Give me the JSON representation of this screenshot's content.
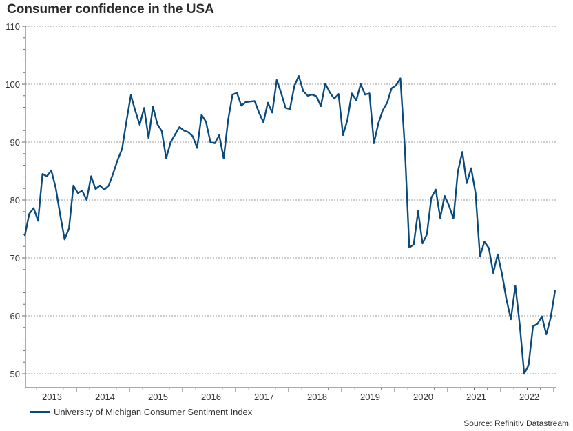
{
  "chart_data": {
    "type": "line",
    "title": "Consumer confidence in the USA",
    "xlabel": "",
    "ylabel": "",
    "ylim": [
      50,
      110
    ],
    "yticks": [
      50,
      60,
      70,
      80,
      90,
      100,
      110
    ],
    "ytick_labels": [
      "50",
      "60",
      "70",
      "80",
      "90",
      "100",
      "110"
    ],
    "grid": "horizontal dashed",
    "x_start": "2013-01",
    "x_frequency": "monthly",
    "xtick_labels": [
      "2013",
      "2014",
      "2015",
      "2016",
      "2017",
      "2018",
      "2019",
      "2020",
      "2021",
      "2022"
    ],
    "legend_position": "bottom-left",
    "series": [
      {
        "name": "University of Michigan Consumer Sentiment Index",
        "color": "#0b4a7c",
        "values": [
          73.8,
          77.6,
          78.6,
          76.4,
          84.5,
          84.1,
          85.1,
          82.1,
          77.5,
          73.2,
          75.1,
          82.5,
          81.2,
          81.6,
          80.0,
          84.1,
          81.9,
          82.5,
          81.8,
          82.5,
          84.6,
          86.9,
          88.8,
          93.6,
          98.1,
          95.4,
          93.0,
          95.9,
          90.7,
          96.1,
          93.1,
          91.9,
          87.2,
          90.0,
          91.3,
          92.6,
          92.0,
          91.7,
          91.0,
          89.0,
          94.7,
          93.5,
          90.0,
          89.8,
          91.2,
          87.2,
          93.8,
          98.2,
          98.5,
          96.3,
          96.9,
          97.0,
          97.1,
          95.1,
          93.4,
          96.8,
          95.1,
          100.7,
          98.5,
          95.9,
          95.7,
          99.7,
          101.4,
          98.8,
          98.0,
          98.2,
          97.9,
          96.2,
          100.1,
          98.6,
          97.5,
          98.3,
          91.2,
          93.8,
          98.4,
          97.2,
          100.0,
          98.2,
          98.4,
          89.8,
          93.2,
          95.5,
          96.8,
          99.3,
          99.8,
          101.0,
          89.1,
          71.8,
          72.3,
          78.1,
          72.5,
          74.1,
          80.4,
          81.8,
          76.9,
          80.7,
          79.0,
          76.8,
          84.9,
          88.3,
          82.9,
          85.5,
          81.2,
          70.3,
          72.8,
          71.7,
          67.4,
          70.6,
          67.2,
          62.8,
          59.4,
          65.2,
          58.4,
          50.0,
          51.5,
          58.2,
          58.6,
          59.9,
          56.8,
          59.7,
          64.4
        ]
      }
    ]
  },
  "source": "Source: Refinitiv Datastream"
}
